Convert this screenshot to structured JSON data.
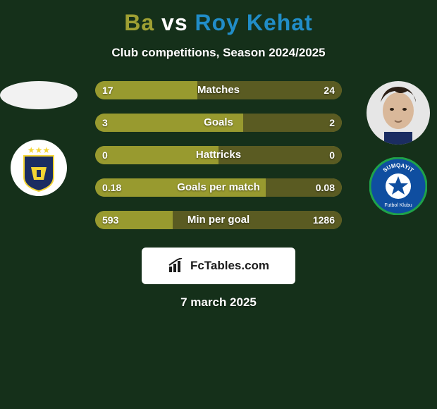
{
  "background_color": "#15301a",
  "title": {
    "player1": "Ba",
    "vs": "vs",
    "player2": "Roy Kehat",
    "color_p1": "#9fa033",
    "color_vs": "#ffffff",
    "color_p2": "#218dc8",
    "fontsize": 32
  },
  "subtitle": "Club competitions, Season 2024/2025",
  "players": {
    "left": {
      "avatar_bg": "#f2f2f2",
      "avatar_ellipse": true,
      "club_bg": "#ffffff",
      "club_inner_bg": "#1b2d62",
      "club_accent": "#f4d533",
      "stars": "★★★"
    },
    "right": {
      "avatar_bg": "#e8d9c9",
      "avatar_skin": "#d9b89a",
      "avatar_hair": "#2b1e14",
      "club_bg": "#ffffff",
      "club_inner_bg": "#0f4ea0",
      "club_ring": "#1fa24a",
      "club_text": "SUMQAYIT"
    }
  },
  "bars": {
    "track_bg": "#a3a438",
    "fill_left_color": "#989a2f",
    "fill_right_color": "#5a5b22",
    "label_color": "#ffffff",
    "height": 26,
    "rows": [
      {
        "label": "Matches",
        "left_val": "17",
        "right_val": "24",
        "left_num": 17,
        "right_num": 24
      },
      {
        "label": "Goals",
        "left_val": "3",
        "right_val": "2",
        "left_num": 3,
        "right_num": 2
      },
      {
        "label": "Hattricks",
        "left_val": "0",
        "right_val": "0",
        "left_num": 0,
        "right_num": 0
      },
      {
        "label": "Goals per match",
        "left_val": "0.18",
        "right_val": "0.08",
        "left_num": 0.18,
        "right_num": 0.08
      },
      {
        "label": "Min per goal",
        "left_val": "593",
        "right_val": "1286",
        "left_num": 593,
        "right_num": 1286
      }
    ]
  },
  "logo": {
    "text": "FcTables.com",
    "bg": "#ffffff",
    "text_color": "#1b1b1b",
    "icon_color": "#1b1b1b"
  },
  "date": "7 march 2025"
}
